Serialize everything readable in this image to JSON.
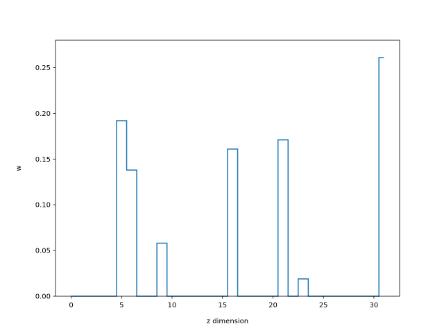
{
  "chart_data": {
    "type": "step",
    "xlabel": "z dimension",
    "ylabel": "w",
    "xlim": [
      -1.55,
      32.55
    ],
    "ylim": [
      0.0,
      0.28
    ],
    "xticks": [
      0,
      5,
      10,
      15,
      20,
      25,
      30
    ],
    "yticks": [
      0.0,
      0.05,
      0.1,
      0.15,
      0.2,
      0.25
    ],
    "xtick_labels": [
      "0",
      "5",
      "10",
      "15",
      "20",
      "25",
      "30"
    ],
    "ytick_labels": [
      "0.00",
      "0.05",
      "0.10",
      "0.15",
      "0.20",
      "0.25"
    ],
    "grid": false,
    "step_where": "mid",
    "line_color": "#1f77b4",
    "x": [
      0,
      1,
      2,
      3,
      4,
      5,
      6,
      7,
      8,
      9,
      10,
      11,
      12,
      13,
      14,
      15,
      16,
      17,
      18,
      19,
      20,
      21,
      22,
      23,
      24,
      25,
      26,
      27,
      28,
      29,
      30,
      31
    ],
    "y": [
      0,
      0,
      0,
      0,
      0,
      0.192,
      0.138,
      0,
      0,
      0.058,
      0,
      0,
      0,
      0,
      0,
      0,
      0.161,
      0,
      0,
      0,
      0,
      0.171,
      0,
      0.019,
      0,
      0,
      0,
      0,
      0,
      0,
      0,
      0.261
    ]
  }
}
